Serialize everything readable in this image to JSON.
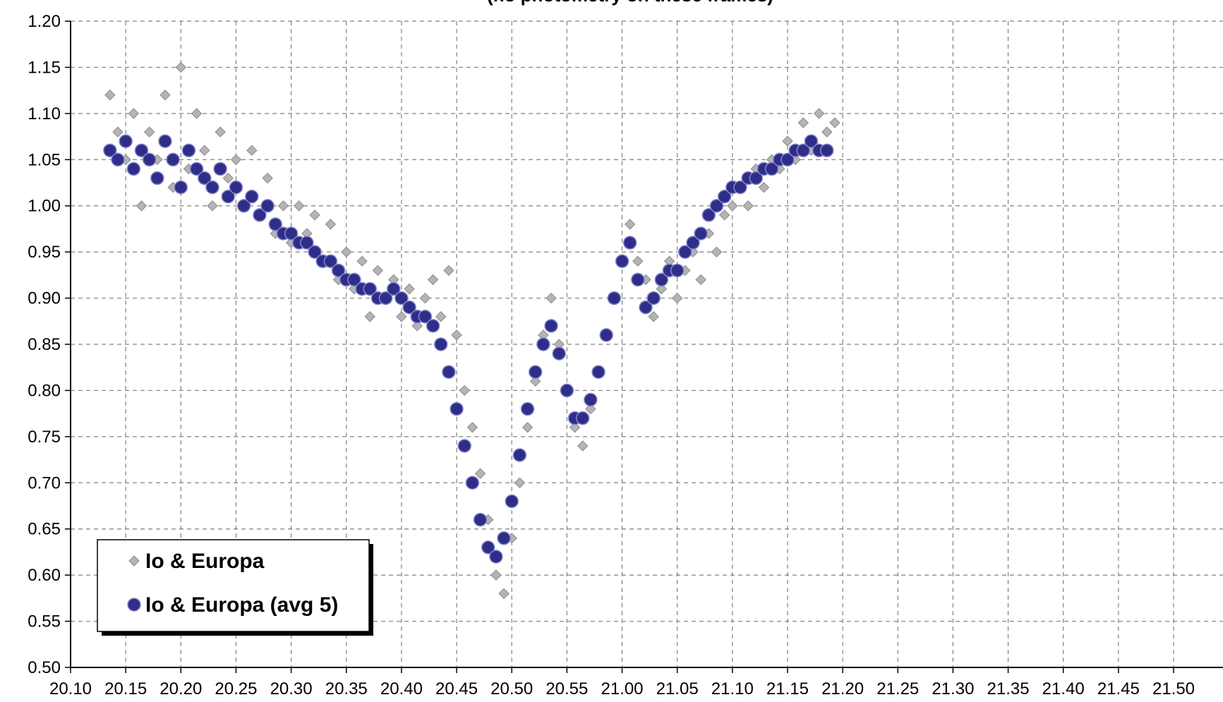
{
  "chart_data": {
    "type": "scatter",
    "title": "(no photometry on these frames)",
    "xlabel": "",
    "ylabel": "",
    "xlim": [
      20.1,
      21.5
    ],
    "ylim": [
      0.5,
      1.2
    ],
    "x_ticks": [
      "20.10",
      "20.15",
      "20.20",
      "20.25",
      "20.30",
      "20.35",
      "20.40",
      "20.45",
      "20.50",
      "20.55",
      "21.00",
      "21.05",
      "21.10",
      "21.15",
      "21.20",
      "21.25",
      "21.30",
      "21.35",
      "21.40",
      "21.45",
      "21.50"
    ],
    "y_ticks": [
      "0.50",
      "0.55",
      "0.60",
      "0.65",
      "0.70",
      "0.75",
      "0.80",
      "0.85",
      "0.90",
      "0.95",
      "1.00",
      "1.05",
      "1.10",
      "1.15",
      "1.20"
    ],
    "grid": true,
    "legend_position": "bottom-left",
    "series": [
      {
        "name": "Io & Europa",
        "color": "#b4b4b4",
        "edge_color": "#8a8a8a",
        "marker": "diamond",
        "points": [
          [
            20.15,
            1.12
          ],
          [
            20.16,
            1.08
          ],
          [
            20.17,
            1.05
          ],
          [
            20.18,
            1.1
          ],
          [
            20.19,
            1.0
          ],
          [
            20.2,
            1.08
          ],
          [
            20.21,
            1.05
          ],
          [
            20.22,
            1.12
          ],
          [
            20.23,
            1.02
          ],
          [
            20.24,
            1.15
          ],
          [
            20.25,
            1.04
          ],
          [
            20.26,
            1.1
          ],
          [
            20.27,
            1.06
          ],
          [
            20.28,
            1.0
          ],
          [
            20.29,
            1.08
          ],
          [
            20.3,
            1.03
          ],
          [
            20.31,
            1.05
          ],
          [
            20.32,
            1.0
          ],
          [
            20.33,
            1.06
          ],
          [
            20.34,
            0.99
          ],
          [
            20.35,
            1.03
          ],
          [
            20.36,
            0.97
          ],
          [
            20.37,
            1.0
          ],
          [
            20.38,
            0.96
          ],
          [
            20.39,
            1.0
          ],
          [
            20.4,
            0.97
          ],
          [
            20.41,
            0.99
          ],
          [
            20.42,
            0.94
          ],
          [
            20.43,
            0.98
          ],
          [
            20.44,
            0.92
          ],
          [
            20.45,
            0.95
          ],
          [
            20.46,
            0.91
          ],
          [
            20.47,
            0.94
          ],
          [
            20.48,
            0.88
          ],
          [
            20.49,
            0.93
          ],
          [
            20.5,
            0.9
          ],
          [
            20.51,
            0.92
          ],
          [
            20.52,
            0.88
          ],
          [
            20.53,
            0.91
          ],
          [
            20.54,
            0.87
          ],
          [
            20.55,
            0.9
          ],
          [
            20.56,
            0.92
          ],
          [
            20.57,
            0.88
          ],
          [
            20.58,
            0.93
          ],
          [
            20.59,
            0.86
          ],
          [
            20.6,
            0.8
          ],
          [
            20.61,
            0.76
          ],
          [
            20.62,
            0.71
          ],
          [
            20.63,
            0.66
          ],
          [
            20.64,
            0.6
          ],
          [
            20.65,
            0.58
          ],
          [
            20.66,
            0.64
          ],
          [
            20.67,
            0.7
          ],
          [
            20.68,
            0.76
          ],
          [
            20.69,
            0.81
          ],
          [
            20.7,
            0.86
          ],
          [
            20.71,
            0.9
          ],
          [
            20.72,
            0.85
          ],
          [
            20.73,
            0.8
          ],
          [
            20.74,
            0.76
          ],
          [
            20.75,
            0.74
          ],
          [
            20.76,
            0.78
          ],
          [
            20.77,
            0.82
          ],
          [
            20.78,
            0.86
          ],
          [
            20.79,
            0.9
          ],
          [
            20.8,
            0.94
          ],
          [
            20.81,
            0.98
          ],
          [
            20.82,
            0.94
          ],
          [
            20.83,
            0.92
          ],
          [
            20.84,
            0.88
          ],
          [
            20.85,
            0.91
          ],
          [
            20.86,
            0.94
          ],
          [
            20.87,
            0.9
          ],
          [
            20.88,
            0.93
          ],
          [
            20.89,
            0.95
          ],
          [
            20.9,
            0.92
          ],
          [
            20.91,
            0.97
          ],
          [
            20.92,
            0.95
          ],
          [
            20.93,
            0.99
          ],
          [
            20.94,
            1.0
          ],
          [
            20.95,
            1.02
          ],
          [
            20.96,
            1.0
          ],
          [
            20.97,
            1.04
          ],
          [
            20.98,
            1.02
          ],
          [
            20.99,
            1.05
          ],
          [
            21.0,
            1.04
          ],
          [
            21.01,
            1.07
          ],
          [
            21.02,
            1.05
          ],
          [
            21.03,
            1.09
          ],
          [
            21.04,
            1.06
          ],
          [
            21.05,
            1.1
          ],
          [
            21.06,
            1.08
          ],
          [
            21.07,
            1.09
          ]
        ]
      },
      {
        "name": "Io & Europa (avg 5)",
        "color": "#2e2e8a",
        "edge_color": "#8888c8",
        "marker": "circle",
        "points": [
          [
            20.15,
            1.06
          ],
          [
            20.16,
            1.05
          ],
          [
            20.17,
            1.07
          ],
          [
            20.18,
            1.04
          ],
          [
            20.19,
            1.06
          ],
          [
            20.2,
            1.05
          ],
          [
            20.21,
            1.03
          ],
          [
            20.22,
            1.07
          ],
          [
            20.23,
            1.05
          ],
          [
            20.24,
            1.02
          ],
          [
            20.25,
            1.06
          ],
          [
            20.26,
            1.04
          ],
          [
            20.27,
            1.03
          ],
          [
            20.28,
            1.02
          ],
          [
            20.29,
            1.04
          ],
          [
            20.3,
            1.01
          ],
          [
            20.31,
            1.02
          ],
          [
            20.32,
            1.0
          ],
          [
            20.33,
            1.01
          ],
          [
            20.34,
            0.99
          ],
          [
            20.35,
            1.0
          ],
          [
            20.36,
            0.98
          ],
          [
            20.37,
            0.97
          ],
          [
            20.38,
            0.97
          ],
          [
            20.39,
            0.96
          ],
          [
            20.4,
            0.96
          ],
          [
            20.41,
            0.95
          ],
          [
            20.42,
            0.94
          ],
          [
            20.43,
            0.94
          ],
          [
            20.44,
            0.93
          ],
          [
            20.45,
            0.92
          ],
          [
            20.46,
            0.92
          ],
          [
            20.47,
            0.91
          ],
          [
            20.48,
            0.91
          ],
          [
            20.49,
            0.9
          ],
          [
            20.5,
            0.9
          ],
          [
            20.51,
            0.91
          ],
          [
            20.52,
            0.9
          ],
          [
            20.53,
            0.89
          ],
          [
            20.54,
            0.88
          ],
          [
            20.55,
            0.88
          ],
          [
            20.56,
            0.87
          ],
          [
            20.57,
            0.85
          ],
          [
            20.58,
            0.82
          ],
          [
            20.59,
            0.78
          ],
          [
            20.6,
            0.74
          ],
          [
            20.61,
            0.7
          ],
          [
            20.62,
            0.66
          ],
          [
            20.63,
            0.63
          ],
          [
            20.64,
            0.62
          ],
          [
            20.65,
            0.64
          ],
          [
            20.66,
            0.68
          ],
          [
            20.67,
            0.73
          ],
          [
            20.68,
            0.78
          ],
          [
            20.69,
            0.82
          ],
          [
            20.7,
            0.85
          ],
          [
            20.71,
            0.87
          ],
          [
            20.72,
            0.84
          ],
          [
            20.73,
            0.8
          ],
          [
            20.74,
            0.77
          ],
          [
            20.75,
            0.77
          ],
          [
            20.76,
            0.79
          ],
          [
            20.77,
            0.82
          ],
          [
            20.78,
            0.86
          ],
          [
            20.79,
            0.9
          ],
          [
            20.8,
            0.94
          ],
          [
            20.81,
            0.96
          ],
          [
            20.82,
            0.92
          ],
          [
            20.83,
            0.89
          ],
          [
            20.84,
            0.9
          ],
          [
            20.85,
            0.92
          ],
          [
            20.86,
            0.93
          ],
          [
            20.87,
            0.93
          ],
          [
            20.88,
            0.95
          ],
          [
            20.89,
            0.96
          ],
          [
            20.9,
            0.97
          ],
          [
            20.91,
            0.99
          ],
          [
            20.92,
            1.0
          ],
          [
            20.93,
            1.01
          ],
          [
            20.94,
            1.02
          ],
          [
            20.95,
            1.02
          ],
          [
            20.96,
            1.03
          ],
          [
            20.97,
            1.03
          ],
          [
            20.98,
            1.04
          ],
          [
            20.99,
            1.04
          ],
          [
            21.0,
            1.05
          ],
          [
            21.01,
            1.05
          ],
          [
            21.02,
            1.06
          ],
          [
            21.03,
            1.06
          ],
          [
            21.04,
            1.07
          ],
          [
            21.05,
            1.06
          ],
          [
            21.06,
            1.06
          ]
        ]
      }
    ]
  }
}
